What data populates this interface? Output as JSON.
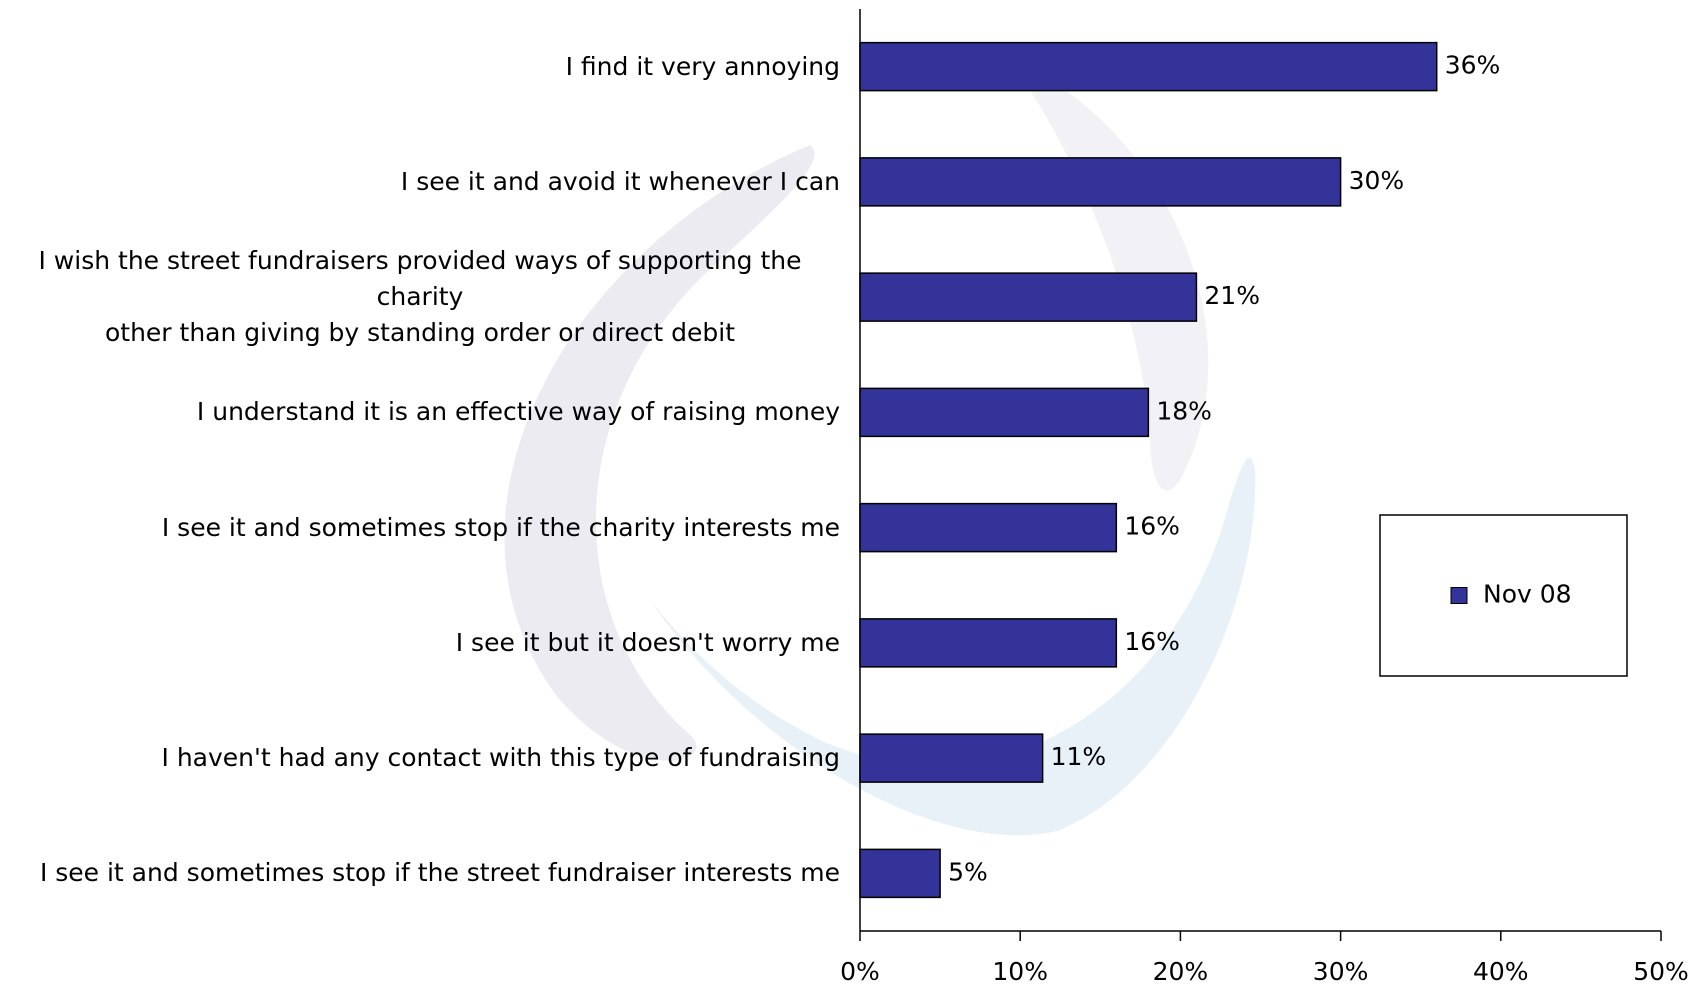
{
  "chart_data": {
    "type": "bar",
    "orientation": "horizontal",
    "categories": [
      "I find it very annoying",
      "I see it and avoid it whenever I can",
      "I wish the street fundraisers provided ways of supporting the charity\nother than giving by standing order or direct debit",
      "I understand it is an effective way of raising money",
      "I see it and sometimes stop if the charity interests me",
      "I see it but it doesn't worry me",
      "I haven't had any contact with this type of fundraising",
      "I see it and sometimes stop if the street fundraiser interests me"
    ],
    "series": [
      {
        "name": "Nov 08",
        "color": "#333399",
        "values": [
          36,
          30,
          21,
          18,
          16,
          16,
          11.4,
          5
        ],
        "value_labels": [
          "36%",
          "30%",
          "21%",
          "18%",
          "16%",
          "16%",
          "11%",
          "5%"
        ]
      }
    ],
    "xlim": [
      0,
      50
    ],
    "xticks": [
      {
        "value": 0,
        "label": "0%"
      },
      {
        "value": 10,
        "label": "10%"
      },
      {
        "value": 20,
        "label": "20%"
      },
      {
        "value": 30,
        "label": "30%"
      },
      {
        "value": 40,
        "label": "40%"
      },
      {
        "value": 50,
        "label": "50%"
      }
    ],
    "grid": false,
    "legend": "right"
  }
}
